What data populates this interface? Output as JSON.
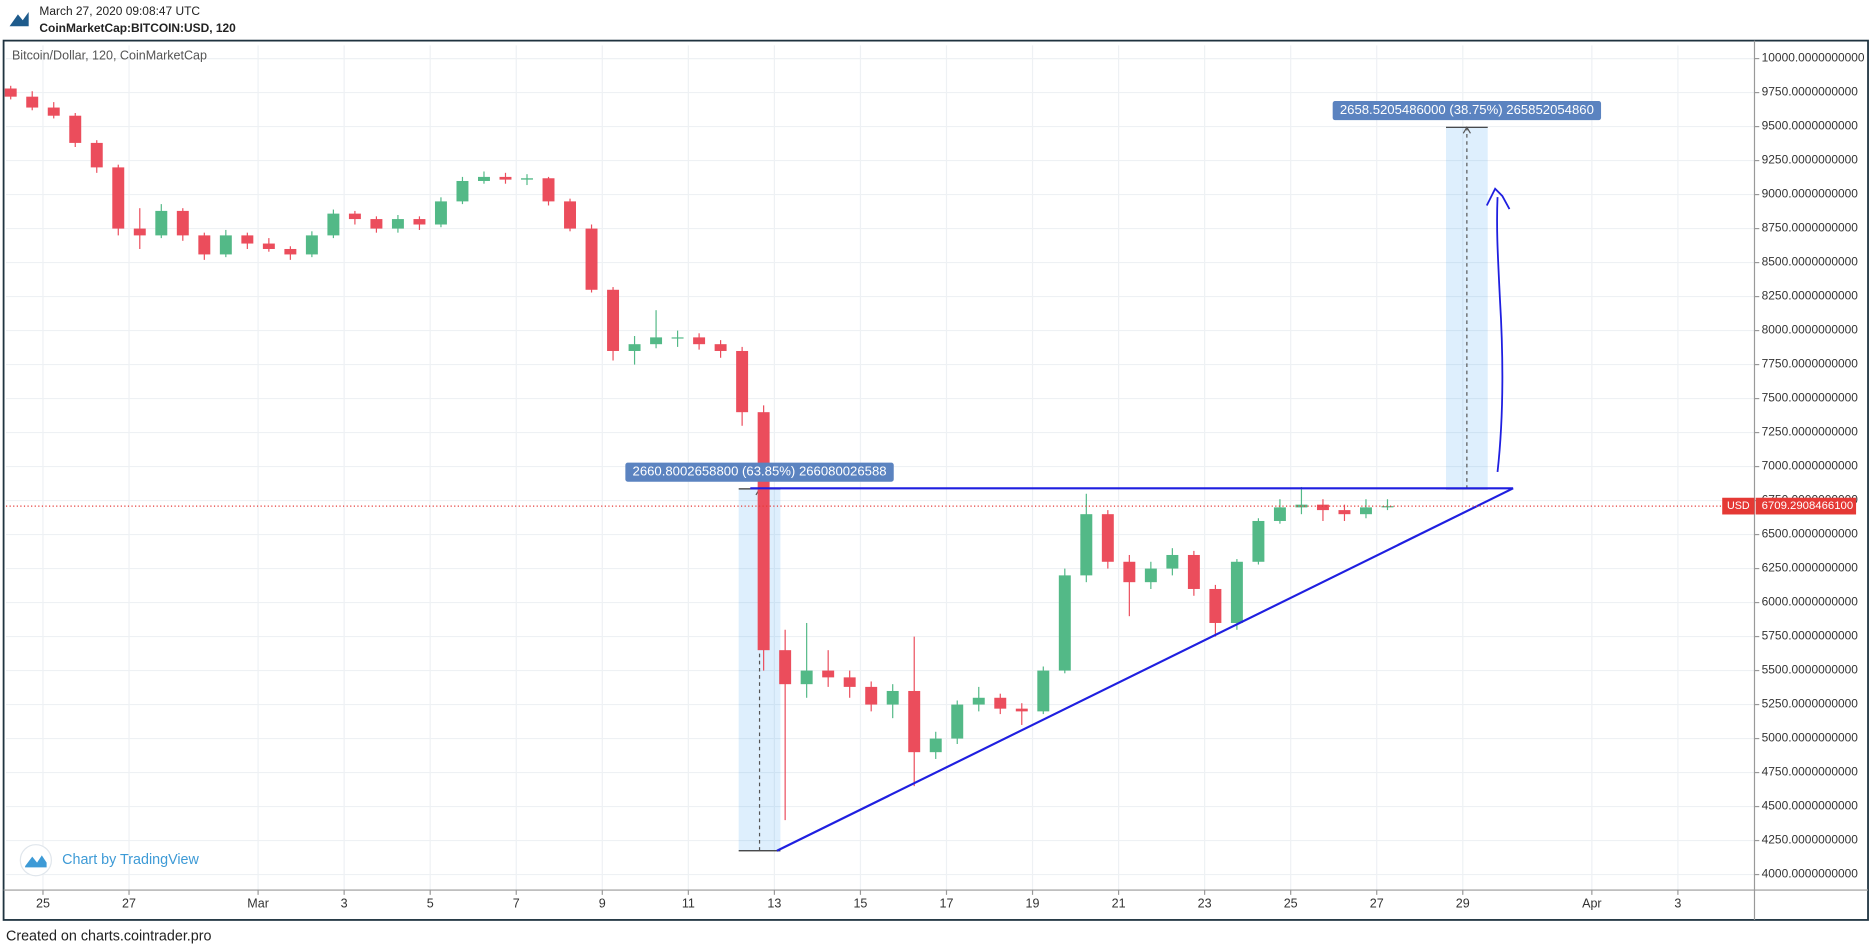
{
  "chart_data": {
    "type": "candlestick",
    "timestamp": "March 27, 2020 09:08:47 UTC",
    "symbol": "CoinMarketCap:BITCOIN:USD, 120",
    "title": "Bitcoin/Dollar, 120, CoinMarketCap",
    "watermark": "Chart by TradingView",
    "footer": "Created on charts.cointrader.pro",
    "up_color": "#53b987",
    "down_color": "#eb4d5c",
    "x": [
      24.25,
      24.75,
      25.25,
      25.75,
      26.25,
      26.75,
      27.25,
      27.75,
      28.25,
      28.75,
      29.25,
      29.75,
      30.25,
      30.75,
      31.25,
      31.75,
      32.25,
      32.75,
      33.25,
      33.75,
      34.25,
      34.75,
      35.25,
      35.75,
      36.25,
      36.75,
      37.25,
      37.75,
      38.25,
      38.75,
      39.25,
      39.75,
      40.25,
      40.75,
      41.25,
      41.75,
      42.25,
      42.75,
      43.25,
      43.75,
      44.25,
      44.75,
      45.25,
      45.75,
      46.25,
      46.75,
      47.25,
      47.75,
      48.25,
      48.75,
      49.25,
      49.75,
      50.25,
      50.75,
      51.25,
      51.75,
      52.25,
      52.75,
      53.25,
      53.75,
      54.25,
      54.75,
      55.25,
      55.75,
      56.25
    ],
    "open": [
      9780,
      9720,
      9640,
      9580,
      9380,
      9200,
      8750,
      8700,
      8880,
      8700,
      8560,
      8700,
      8640,
      8600,
      8560,
      8700,
      8860,
      8820,
      8750,
      8820,
      8780,
      8950,
      9100,
      9130,
      9110,
      9120,
      8950,
      8750,
      8300,
      7850,
      7900,
      7950,
      7950,
      7900,
      7850,
      7400,
      5650,
      5400,
      5500,
      5450,
      5380,
      5250,
      5350,
      4900,
      5000,
      5250,
      5300,
      5220,
      5200,
      5500,
      6200,
      6650,
      6300,
      6150,
      6250,
      6350,
      6100,
      5850,
      6300,
      6600,
      6700,
      6720,
      6680,
      6650,
      6700
    ],
    "high": [
      9800,
      9760,
      9680,
      9600,
      9400,
      9220,
      8900,
      8930,
      8900,
      8720,
      8740,
      8720,
      8680,
      8620,
      8730,
      8890,
      8880,
      8840,
      8850,
      8840,
      8980,
      9130,
      9170,
      9160,
      9150,
      9130,
      8970,
      8780,
      8320,
      7960,
      8150,
      8000,
      7980,
      7930,
      7880,
      7450,
      5800,
      5850,
      5650,
      5500,
      5420,
      5400,
      5750,
      5050,
      5280,
      5380,
      5330,
      5260,
      5530,
      6250,
      6800,
      6680,
      6350,
      6300,
      6400,
      6380,
      6130,
      6320,
      6620,
      6760,
      6850,
      6760,
      6720,
      6760,
      6760
    ],
    "low": [
      9700,
      9620,
      9560,
      9350,
      9160,
      8700,
      8600,
      8680,
      8660,
      8520,
      8540,
      8600,
      8580,
      8520,
      8540,
      8680,
      8780,
      8720,
      8720,
      8740,
      8760,
      8930,
      9080,
      9080,
      9070,
      8920,
      8730,
      8280,
      7780,
      7750,
      7870,
      7880,
      7860,
      7800,
      7300,
      5500,
      4400,
      5300,
      5380,
      5300,
      5200,
      5150,
      4650,
      4850,
      4960,
      5200,
      5180,
      5100,
      5180,
      5480,
      6150,
      6250,
      5900,
      6100,
      6200,
      6050,
      5750,
      5800,
      6280,
      6580,
      6650,
      6600,
      6600,
      6620,
      6680
    ],
    "close": [
      9720,
      9640,
      9580,
      9380,
      9200,
      8750,
      8700,
      8880,
      8700,
      8560,
      8700,
      8640,
      8600,
      8560,
      8700,
      8860,
      8820,
      8750,
      8820,
      8780,
      8950,
      9100,
      9130,
      9110,
      9120,
      8950,
      8750,
      8300,
      7850,
      7900,
      7950,
      7950,
      7900,
      7850,
      7400,
      5650,
      5400,
      5500,
      5450,
      5380,
      5250,
      5350,
      4900,
      5000,
      5250,
      5300,
      5220,
      5200,
      5500,
      6200,
      6650,
      6300,
      6150,
      6250,
      6350,
      6100,
      5850,
      6300,
      6600,
      6700,
      6720,
      6680,
      6650,
      6700,
      6709
    ],
    "xlim": [
      24.14,
      64.78
    ],
    "ylim": [
      3886,
      10097
    ],
    "xticks": [
      {
        "value": 25,
        "label": "25"
      },
      {
        "value": 27,
        "label": "27"
      },
      {
        "value": 30,
        "label": "Mar"
      },
      {
        "value": 32,
        "label": "3"
      },
      {
        "value": 34,
        "label": "5"
      },
      {
        "value": 36,
        "label": "7"
      },
      {
        "value": 38,
        "label": "9"
      },
      {
        "value": 40,
        "label": "11"
      },
      {
        "value": 42,
        "label": "13"
      },
      {
        "value": 44,
        "label": "15"
      },
      {
        "value": 46,
        "label": "17"
      },
      {
        "value": 48,
        "label": "19"
      },
      {
        "value": 50,
        "label": "21"
      },
      {
        "value": 52,
        "label": "23"
      },
      {
        "value": 54,
        "label": "25"
      },
      {
        "value": 56,
        "label": "27"
      },
      {
        "value": 58,
        "label": "29"
      },
      {
        "value": 61,
        "label": "Apr"
      },
      {
        "value": 63,
        "label": "3"
      }
    ],
    "yticks": [
      {
        "value": 4000,
        "label": "4000.0000000000"
      },
      {
        "value": 4250,
        "label": "4250.0000000000"
      },
      {
        "value": 4500,
        "label": "4500.0000000000"
      },
      {
        "value": 4750,
        "label": "4750.0000000000"
      },
      {
        "value": 5000,
        "label": "5000.0000000000"
      },
      {
        "value": 5250,
        "label": "5250.0000000000"
      },
      {
        "value": 5500,
        "label": "5500.0000000000"
      },
      {
        "value": 5750,
        "label": "5750.0000000000"
      },
      {
        "value": 6000,
        "label": "6000.0000000000"
      },
      {
        "value": 6250,
        "label": "6250.0000000000"
      },
      {
        "value": 6500,
        "label": "6500.0000000000"
      },
      {
        "value": 6750,
        "label": "6750.0000000000"
      },
      {
        "value": 7000,
        "label": "7000.0000000000"
      },
      {
        "value": 7250,
        "label": "7250.0000000000"
      },
      {
        "value": 7500,
        "label": "7500.0000000000"
      },
      {
        "value": 7750,
        "label": "7750.0000000000"
      },
      {
        "value": 8000,
        "label": "8000.0000000000"
      },
      {
        "value": 8250,
        "label": "8250.0000000000"
      },
      {
        "value": 8500,
        "label": "8500.0000000000"
      },
      {
        "value": 8750,
        "label": "8750.0000000000"
      },
      {
        "value": 9000,
        "label": "9000.0000000000"
      },
      {
        "value": 9250,
        "label": "9250.0000000000"
      },
      {
        "value": 9500,
        "label": "9500.0000000000"
      },
      {
        "value": 9750,
        "label": "9750.0000000000"
      },
      {
        "value": 10000,
        "label": "10000.0000000000"
      }
    ],
    "grid": true,
    "price_line": {
      "currency": "USD",
      "value": 6709.29084661,
      "label": "6709.2908466100",
      "color": "#e53935"
    },
    "measurements": [
      {
        "label": "2660.8002658800 (63.85%) 266080026588",
        "x": [
          41.17,
          42.14
        ],
        "low": 4175,
        "high": 6835.8
      },
      {
        "label": "2658.5205486000 (38.75%) 265852054860",
        "x": [
          57.61,
          58.58
        ],
        "low": 6836,
        "high": 9494.5
      }
    ],
    "trendlines": [
      {
        "x": [
          41.44,
          59.17
        ],
        "y": [
          6840,
          6840
        ]
      },
      {
        "x": [
          42.06,
          59.17
        ],
        "y": [
          4175,
          6840
        ]
      }
    ],
    "drawing_color": "#1f1fe0"
  }
}
